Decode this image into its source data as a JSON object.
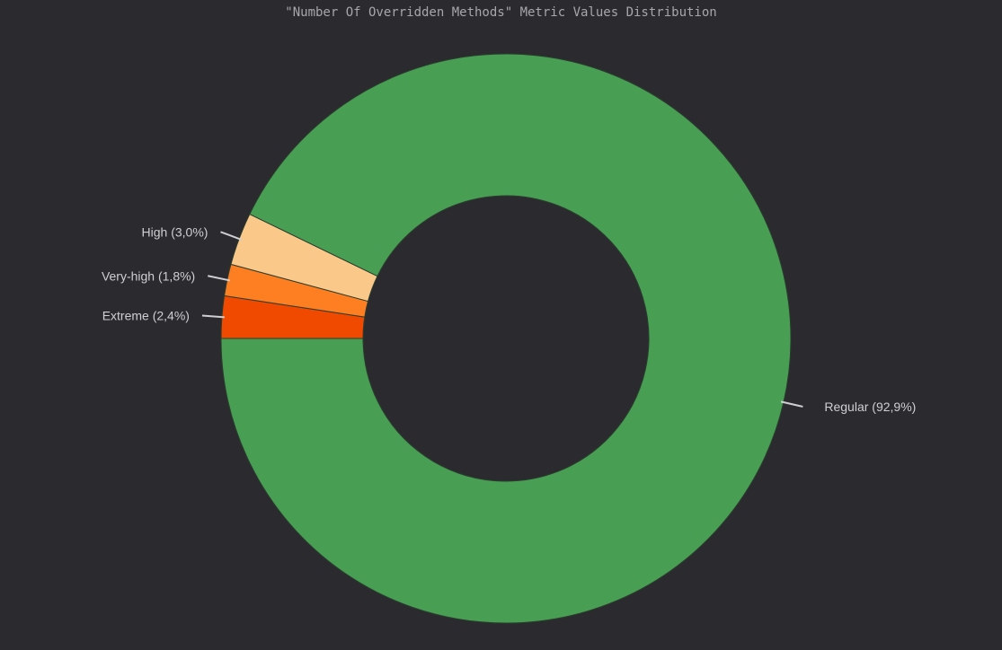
{
  "chart_data": {
    "type": "pie",
    "variant": "donut",
    "title": "\"Number Of Overridden Methods\" Metric Values Distribution",
    "start_angle": "9 o'clock, clockwise",
    "slices": [
      {
        "name": "Extreme",
        "label": "Extreme (2,4%)",
        "value": 2.4,
        "color": "#f04a00"
      },
      {
        "name": "Very-high",
        "label": "Very-high (1,8%)",
        "value": 1.8,
        "color": "#fd7f21"
      },
      {
        "name": "High",
        "label": "High (3,0%)",
        "value": 3.0,
        "color": "#fac98a"
      },
      {
        "name": "Regular",
        "label": "Regular (92,9%)",
        "value": 92.9,
        "color": "#489f54"
      }
    ],
    "background": "#2b2b2f",
    "leader_line_color": "#cfcfd3",
    "slice_border_color": "#2a3d2e"
  }
}
